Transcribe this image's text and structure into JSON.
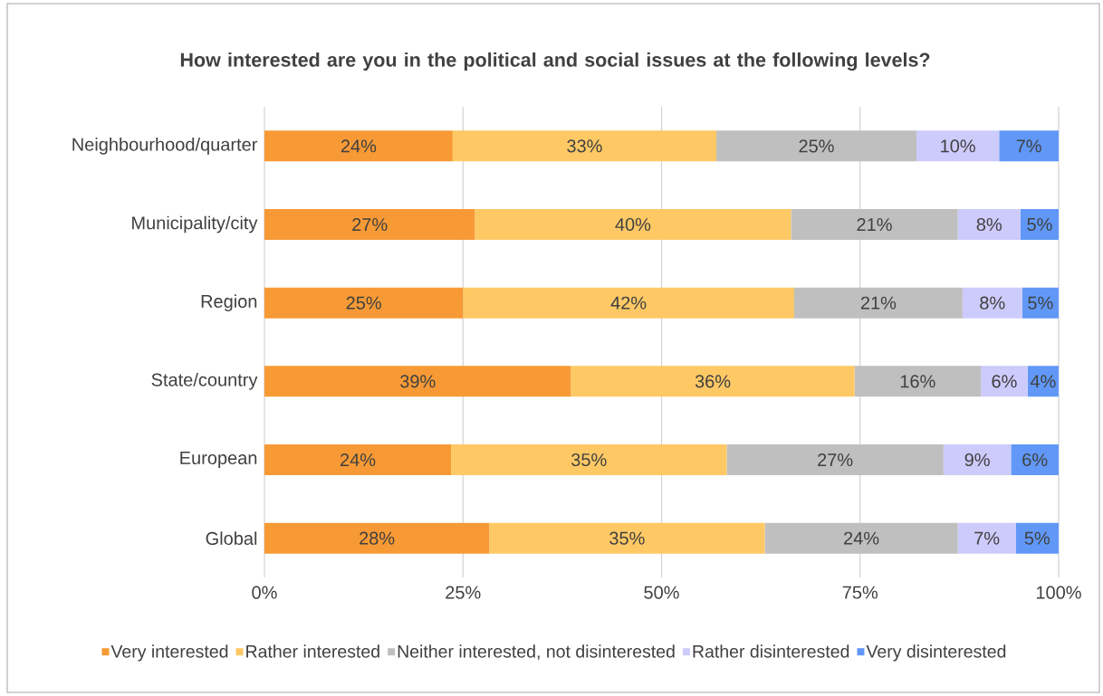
{
  "chart_data": {
    "type": "bar",
    "orientation": "horizontal",
    "stacked": true,
    "title": "How interested are you in the political and social issues at the following levels?",
    "categories": [
      "Neighbourhood/quarter",
      "Municipality/city",
      "Region",
      "State/country",
      "European",
      "Global"
    ],
    "series": [
      {
        "name": "Very interested",
        "color": "#f79a35",
        "values": [
          23.7,
          26.5,
          25.0,
          38.6,
          23.5,
          28.3
        ],
        "value_labels": [
          "24%",
          "27%",
          "25%",
          "39%",
          "24%",
          "28%"
        ]
      },
      {
        "name": "Rather interested",
        "color": "#fec965",
        "values": [
          33.2,
          39.8,
          41.7,
          35.7,
          34.7,
          34.7
        ],
        "value_labels": [
          "33%",
          "40%",
          "42%",
          "36%",
          "35%",
          "35%"
        ]
      },
      {
        "name": "Neither interested, not disinterested",
        "color": "#bfbfbf",
        "values": [
          25.2,
          21.0,
          21.2,
          15.9,
          27.3,
          24.3
        ],
        "value_labels": [
          "25%",
          "21%",
          "21%",
          "16%",
          "27%",
          "24%"
        ]
      },
      {
        "name": "Rather disinterested",
        "color": "#cdcbfb",
        "values": [
          10.4,
          7.9,
          7.5,
          5.9,
          8.5,
          7.3
        ],
        "value_labels": [
          "10%",
          "8%",
          "8%",
          "6%",
          "9%",
          "7%"
        ]
      },
      {
        "name": "Very disinterested",
        "color": "#6198f8",
        "values": [
          7.5,
          4.8,
          4.6,
          3.9,
          6.0,
          5.4
        ],
        "value_labels": [
          "7%",
          "5%",
          "5%",
          "4%",
          "6%",
          "5%"
        ]
      }
    ],
    "xlim": [
      0,
      100
    ],
    "xticks": [
      {
        "value": 0,
        "label": "0%"
      },
      {
        "value": 25,
        "label": "25%"
      },
      {
        "value": 50,
        "label": "50%"
      },
      {
        "value": 75,
        "label": "75%"
      },
      {
        "value": 100,
        "label": "100%"
      }
    ],
    "grid": "x",
    "legend": "bottom"
  }
}
